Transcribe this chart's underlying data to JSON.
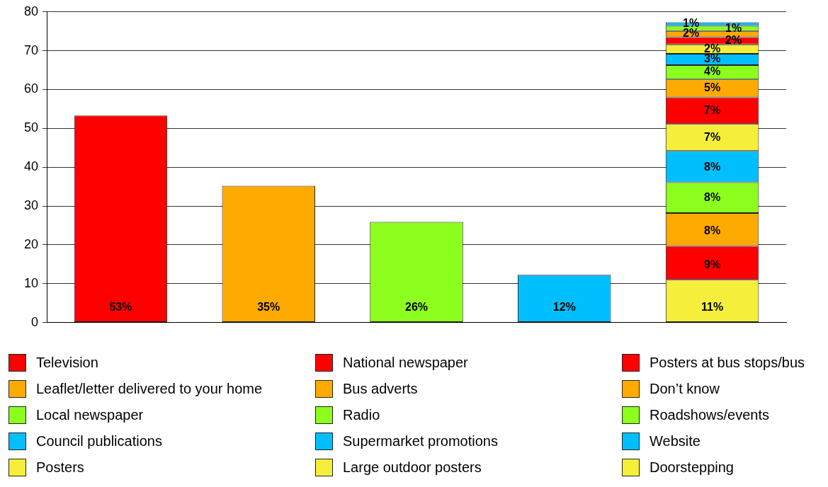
{
  "chart_data": {
    "type": "bar",
    "stacked": true,
    "categories": [
      null,
      null,
      null,
      null,
      null
    ],
    "ylim": [
      0,
      80
    ],
    "yticks": [
      0,
      10,
      20,
      30,
      40,
      50,
      60,
      70,
      80
    ],
    "grid": "y",
    "legend": "bottom",
    "series": [
      {
        "name": "Television",
        "color": "#ff0000",
        "values": [
          53.3,
          null,
          null,
          null,
          null
        ],
        "value_labels": [
          "53%",
          null,
          null,
          null,
          null
        ]
      },
      {
        "name": "Leaflet/letter delivered to your home",
        "color": "#ffaa00",
        "values": [
          null,
          35.2,
          null,
          null,
          null
        ],
        "value_labels": [
          null,
          "35%",
          null,
          null,
          null
        ]
      },
      {
        "name": "Local newspaper",
        "color": "#8cff1e",
        "values": [
          null,
          null,
          25.9,
          null,
          null
        ],
        "value_labels": [
          null,
          null,
          "26%",
          null,
          null
        ]
      },
      {
        "name": "Council publications",
        "color": "#00bfff",
        "values": [
          null,
          null,
          null,
          12.3,
          null
        ],
        "value_labels": [
          null,
          null,
          null,
          "12%",
          null
        ]
      },
      {
        "name": "Posters",
        "color": "#f5ef3c",
        "values": [
          null,
          null,
          null,
          null,
          11.0
        ],
        "value_labels": [
          null,
          null,
          null,
          null,
          "11%"
        ]
      },
      {
        "name": "National newspaper",
        "color": "#ff0000",
        "values": [
          null,
          null,
          null,
          null,
          8.7
        ],
        "value_labels": [
          null,
          null,
          null,
          null,
          "9%"
        ]
      },
      {
        "name": "Bus adverts",
        "color": "#ffaa00",
        "values": [
          null,
          null,
          null,
          null,
          8.5
        ],
        "value_labels": [
          null,
          null,
          null,
          null,
          "8%"
        ]
      },
      {
        "name": "Radio",
        "color": "#8cff1e",
        "values": [
          null,
          null,
          null,
          null,
          7.9
        ],
        "value_labels": [
          null,
          null,
          null,
          null,
          "8%"
        ]
      },
      {
        "name": "Supermarket promotions",
        "color": "#00bfff",
        "values": [
          null,
          null,
          null,
          null,
          8.1
        ],
        "value_labels": [
          null,
          null,
          null,
          null,
          "8%"
        ]
      },
      {
        "name": "Large outdoor posters",
        "color": "#f5ef3c",
        "values": [
          null,
          null,
          null,
          null,
          6.9
        ],
        "value_labels": [
          null,
          null,
          null,
          null,
          "7%"
        ]
      },
      {
        "name": "Posters at bus stops/bus",
        "color": "#ff0000",
        "values": [
          null,
          null,
          null,
          null,
          6.9
        ],
        "value_labels": [
          null,
          null,
          null,
          null,
          "7%"
        ]
      },
      {
        "name": "Don’t know",
        "color": "#ffaa00",
        "values": [
          null,
          null,
          null,
          null,
          4.6
        ],
        "value_labels": [
          null,
          null,
          null,
          null,
          "5%"
        ]
      },
      {
        "name": "Roadshows/events",
        "color": "#8cff1e",
        "values": [
          null,
          null,
          null,
          null,
          3.7
        ],
        "value_labels": [
          null,
          null,
          null,
          null,
          "4%"
        ]
      },
      {
        "name": "Website",
        "color": "#00bfff",
        "values": [
          null,
          null,
          null,
          null,
          2.9
        ],
        "value_labels": [
          null,
          null,
          null,
          null,
          "3%"
        ]
      },
      {
        "name": "Doorstepping",
        "color": "#f5ef3c",
        "values": [
          null,
          null,
          null,
          null,
          2.4
        ],
        "value_labels": [
          null,
          null,
          null,
          null,
          "2%"
        ]
      },
      {
        "color": "#ff0000",
        "values": [
          null,
          null,
          null,
          null,
          1.9
        ],
        "value_labels": [
          null,
          null,
          null,
          null,
          "2%"
        ]
      },
      {
        "color": "#ffaa00",
        "values": [
          null,
          null,
          null,
          null,
          1.6
        ],
        "value_labels": [
          null,
          null,
          null,
          null,
          "2%"
        ]
      },
      {
        "color": "#8cff1e",
        "values": [
          null,
          null,
          null,
          null,
          1.3
        ],
        "value_labels": [
          null,
          null,
          null,
          null,
          "1%"
        ]
      },
      {
        "color": "#00bfff",
        "values": [
          null,
          null,
          null,
          null,
          0.9
        ],
        "value_labels": [
          null,
          null,
          null,
          null,
          "1%"
        ]
      }
    ]
  }
}
